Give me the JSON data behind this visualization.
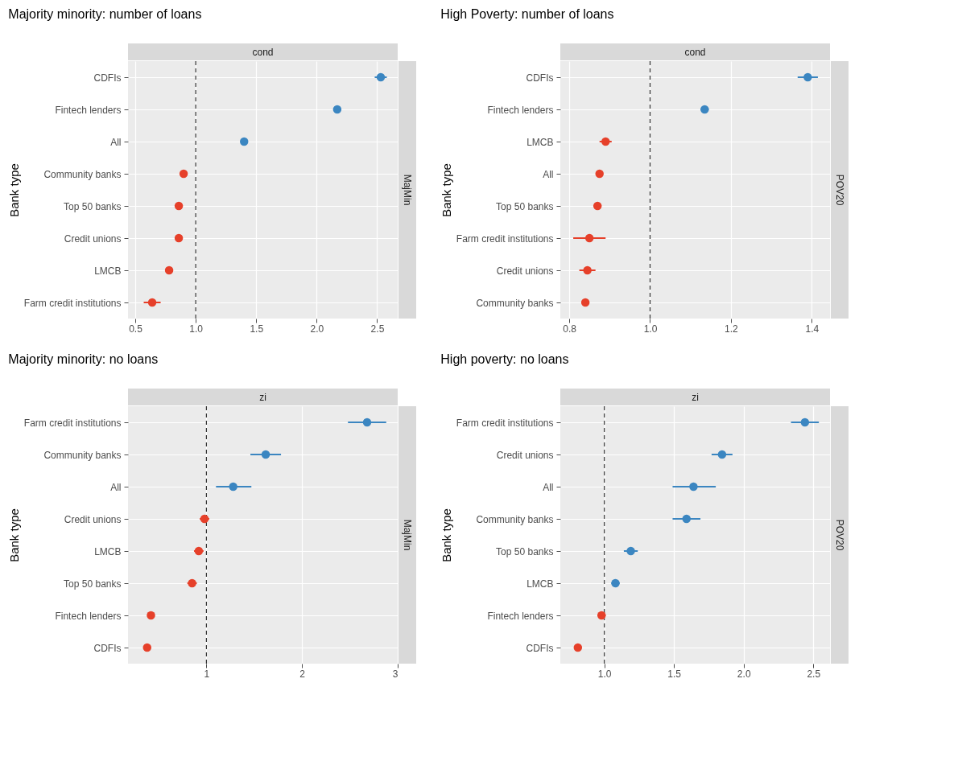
{
  "chart_data": [
    {
      "type": "scatter",
      "orientation": "horizontal",
      "title": "Majority minority: number of loans",
      "ylabel": "Bank type",
      "annotations": [
        "cond",
        "MajMin"
      ],
      "categories": [
        "CDFIs",
        "Fintech lenders",
        "All",
        "Community banks",
        "Top 50 banks",
        "Credit unions",
        "LMCB",
        "Farm credit institutions"
      ],
      "values": [
        2.53,
        2.17,
        1.4,
        0.9,
        0.86,
        0.86,
        0.78,
        0.64
      ],
      "errors": [
        0.05,
        null,
        null,
        null,
        null,
        null,
        null,
        0.07
      ],
      "colors": [
        "#3b86c1",
        "#3b86c1",
        "#3b86c1",
        "#e6402a",
        "#e6402a",
        "#e6402a",
        "#e6402a",
        "#e6402a"
      ],
      "xlim": [
        0.44,
        2.67
      ],
      "xticks": [
        {
          "value": 0.5,
          "label": "0.5"
        },
        {
          "value": 1,
          "label": "1.0"
        },
        {
          "value": 1.5,
          "label": "1.5"
        },
        {
          "value": 2,
          "label": "2.0"
        },
        {
          "value": 2.5,
          "label": "2.5"
        }
      ],
      "ref_lines": [
        {
          "axis": "x",
          "value": 1,
          "line_style": "dashed",
          "color": "#333333"
        }
      ],
      "grid": true,
      "marker": "circle"
    },
    {
      "type": "scatter",
      "orientation": "horizontal",
      "title": "High Poverty: number of loans",
      "ylabel": "Bank type",
      "annotations": [
        "cond",
        "POV20"
      ],
      "categories": [
        "CDFIs",
        "Fintech lenders",
        "LMCB",
        "All",
        "Top 50 banks",
        "Farm credit institutions",
        "Credit unions",
        "Community banks"
      ],
      "values": [
        1.39,
        1.135,
        0.89,
        0.875,
        0.87,
        0.85,
        0.845,
        0.84
      ],
      "errors": [
        0.025,
        0.01,
        0.015,
        null,
        null,
        0.04,
        0.02,
        null
      ],
      "colors": [
        "#3b86c1",
        "#3b86c1",
        "#e6402a",
        "#e6402a",
        "#e6402a",
        "#e6402a",
        "#e6402a",
        "#e6402a"
      ],
      "xlim": [
        0.778,
        1.445
      ],
      "xticks": [
        {
          "value": 0.8,
          "label": "0.8"
        },
        {
          "value": 1,
          "label": "1.0"
        },
        {
          "value": 1.2,
          "label": "1.2"
        },
        {
          "value": 1.4,
          "label": "1.4"
        }
      ],
      "ref_lines": [
        {
          "axis": "x",
          "value": 1,
          "line_style": "dashed",
          "color": "#333333"
        }
      ],
      "grid": true,
      "marker": "circle"
    },
    {
      "type": "scatter",
      "orientation": "horizontal",
      "title": "Majority minority: no loans",
      "ylabel": "Bank type",
      "annotations": [
        "zi",
        "MajMin"
      ],
      "categories": [
        "Farm credit institutions",
        "Community banks",
        "All",
        "Credit unions",
        "LMCB",
        "Top 50 banks",
        "Fintech lenders",
        "CDFIs"
      ],
      "values": [
        2.68,
        1.62,
        1.28,
        0.98,
        0.92,
        0.85,
        0.42,
        0.38
      ],
      "errors": [
        0.2,
        0.16,
        [
          1.1,
          1.47
        ],
        0.05,
        0.05,
        0.05,
        null,
        null
      ],
      "colors": [
        "#3b86c1",
        "#3b86c1",
        "#3b86c1",
        "#e6402a",
        "#e6402a",
        "#e6402a",
        "#e6402a",
        "#e6402a"
      ],
      "xlim": [
        0.18,
        3.0
      ],
      "xticks": [
        1,
        2,
        3
      ],
      "ref_lines": [
        {
          "axis": "x",
          "value": 1,
          "line_style": "dashed",
          "color": "#333333"
        }
      ],
      "grid": true,
      "marker": "circle"
    },
    {
      "type": "scatter",
      "orientation": "horizontal",
      "title": "High poverty: no loans",
      "ylabel": "Bank type",
      "annotations": [
        "zi",
        "POV20"
      ],
      "categories": [
        "Farm credit institutions",
        "Credit unions",
        "All",
        "Community banks",
        "Top 50 banks",
        "LMCB",
        "Fintech lenders",
        "CDFIs"
      ],
      "values": [
        2.44,
        1.845,
        1.64,
        1.59,
        1.19,
        1.08,
        0.98,
        0.81
      ],
      "errors": [
        0.1,
        0.075,
        [
          1.49,
          1.8
        ],
        [
          1.49,
          1.69
        ],
        0.05,
        0.03,
        0.03,
        null
      ],
      "colors": [
        "#3b86c1",
        "#3b86c1",
        "#3b86c1",
        "#3b86c1",
        "#3b86c1",
        "#3b86c1",
        "#e6402a",
        "#e6402a"
      ],
      "xlim": [
        0.684,
        2.62
      ],
      "xticks": [
        {
          "value": 1,
          "label": "1.0"
        },
        {
          "value": 1.5,
          "label": "1.5"
        },
        {
          "value": 2,
          "label": "2.0"
        },
        {
          "value": 2.5,
          "label": "2.5"
        }
      ],
      "ref_lines": [
        {
          "axis": "x",
          "value": 1,
          "line_style": "dashed",
          "color": "#333333"
        }
      ],
      "grid": true,
      "marker": "circle"
    }
  ]
}
